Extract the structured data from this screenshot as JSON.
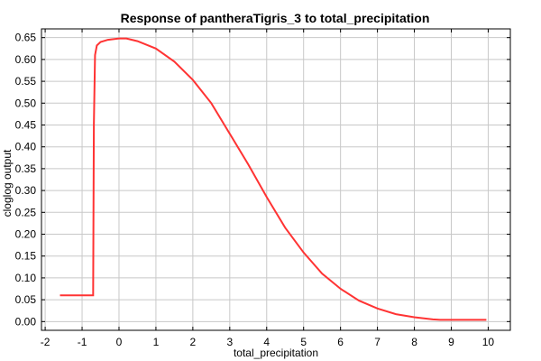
{
  "chart_data": {
    "type": "line",
    "title": "Response of pantheraTigris_3 to total_precipitation",
    "xlabel": "total_precipitation",
    "ylabel": "cloglog output",
    "xlim": [
      -2.1,
      10.6
    ],
    "ylim": [
      -0.02,
      0.67
    ],
    "grid": true,
    "legend": "none",
    "colors": {
      "line": "#ff3333",
      "grid": "#c8c8c8",
      "axis": "#000000"
    },
    "x_ticks": [
      {
        "value": -2,
        "label": "-2"
      },
      {
        "value": -1,
        "label": "-1"
      },
      {
        "value": 0,
        "label": "0"
      },
      {
        "value": 1,
        "label": "1"
      },
      {
        "value": 2,
        "label": "2"
      },
      {
        "value": 3,
        "label": "3"
      },
      {
        "value": 4,
        "label": "4"
      },
      {
        "value": 5,
        "label": "5"
      },
      {
        "value": 6,
        "label": "6"
      },
      {
        "value": 7,
        "label": "7"
      },
      {
        "value": 8,
        "label": "8"
      },
      {
        "value": 9,
        "label": "9"
      },
      {
        "value": 10,
        "label": "10"
      }
    ],
    "y_ticks": [
      {
        "value": 0.0,
        "label": "0.00"
      },
      {
        "value": 0.05,
        "label": "0.05"
      },
      {
        "value": 0.1,
        "label": "0.10"
      },
      {
        "value": 0.15,
        "label": "0.15"
      },
      {
        "value": 0.2,
        "label": "0.20"
      },
      {
        "value": 0.25,
        "label": "0.25"
      },
      {
        "value": 0.3,
        "label": "0.30"
      },
      {
        "value": 0.35,
        "label": "0.35"
      },
      {
        "value": 0.4,
        "label": "0.40"
      },
      {
        "value": 0.45,
        "label": "0.45"
      },
      {
        "value": 0.5,
        "label": "0.50"
      },
      {
        "value": 0.55,
        "label": "0.55"
      },
      {
        "value": 0.6,
        "label": "0.60"
      },
      {
        "value": 0.65,
        "label": "0.65"
      }
    ],
    "series": [
      {
        "x": [
          -1.6,
          -0.7,
          -0.68,
          -0.65,
          -0.6,
          -0.5,
          -0.3,
          0.0,
          0.2,
          0.5,
          1.0,
          1.5,
          2.0,
          2.5,
          3.0,
          3.5,
          4.0,
          4.5,
          5.0,
          5.5,
          6.0,
          6.5,
          7.0,
          7.5,
          8.0,
          8.5,
          8.7,
          9.0,
          9.5,
          9.95
        ],
        "y": [
          0.06,
          0.06,
          0.45,
          0.61,
          0.632,
          0.64,
          0.645,
          0.648,
          0.648,
          0.642,
          0.625,
          0.595,
          0.553,
          0.5,
          0.43,
          0.36,
          0.285,
          0.215,
          0.158,
          0.11,
          0.075,
          0.048,
          0.03,
          0.017,
          0.01,
          0.005,
          0.004,
          0.004,
          0.004,
          0.004
        ]
      }
    ]
  }
}
